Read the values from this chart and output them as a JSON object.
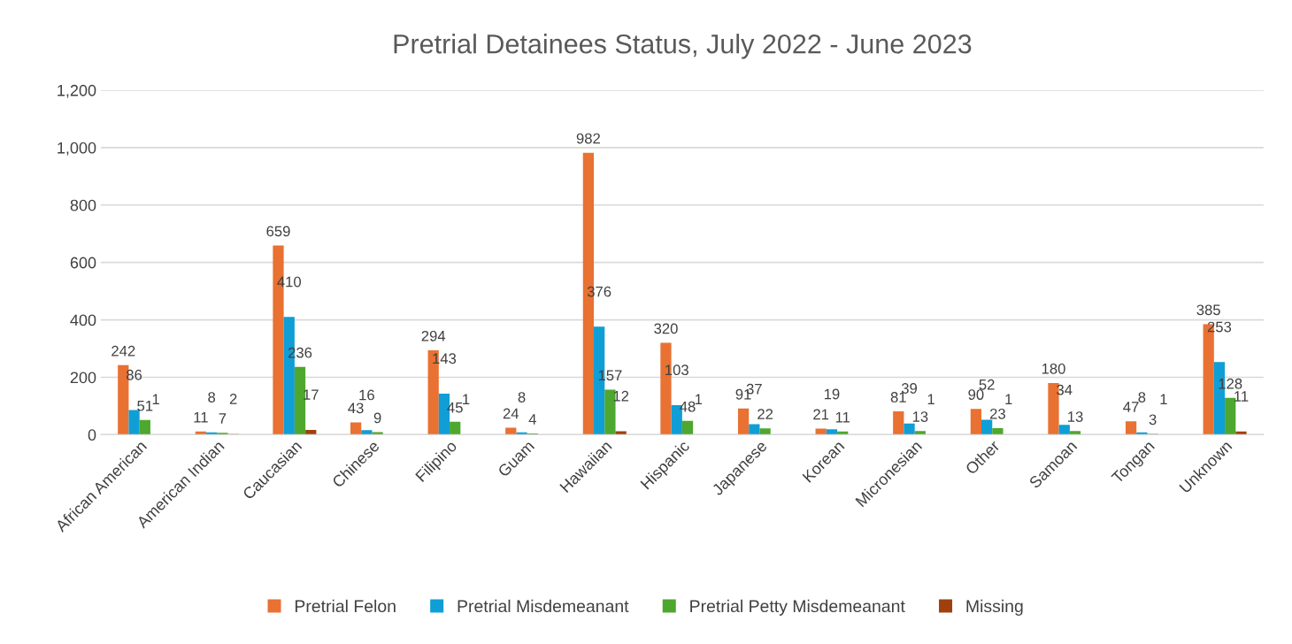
{
  "chart_data": {
    "type": "bar",
    "title": "Pretrial Detainees Status, July 2022 - June 2023",
    "categories": [
      "African American",
      "American Indian",
      "Caucasian",
      "Chinese",
      "Filipino",
      "Guam",
      "Hawaiian",
      "Hispanic",
      "Japanese",
      "Korean",
      "Micronesian",
      "Other",
      "Samoan",
      "Tongan",
      "Unknown"
    ],
    "series": [
      {
        "name": "Pretrial Felon",
        "color": "#e97132",
        "values": [
          242,
          11,
          659,
          43,
          294,
          24,
          982,
          320,
          91,
          21,
          81,
          90,
          180,
          47,
          385
        ]
      },
      {
        "name": "Pretrial Misdemeanant",
        "color": "#0f9ed5",
        "values": [
          86,
          8,
          410,
          16,
          143,
          8,
          376,
          103,
          37,
          19,
          39,
          52,
          34,
          8,
          253
        ]
      },
      {
        "name": "Pretrial Petty Misdemeanant",
        "color": "#4ea72e",
        "values": [
          51,
          7,
          236,
          9,
          45,
          4,
          157,
          48,
          22,
          11,
          13,
          23,
          13,
          3,
          128
        ]
      },
      {
        "name": "Missing",
        "color": "#a0410d",
        "values": [
          1,
          2,
          17,
          null,
          1,
          null,
          12,
          1,
          null,
          null,
          1,
          1,
          null,
          1,
          11
        ]
      }
    ],
    "ylim": [
      0,
      1200
    ],
    "yticks": [
      0,
      200,
      400,
      600,
      800,
      {
        "value": 1000,
        "label": "1,000"
      },
      {
        "value": 1200,
        "label": "1,200"
      }
    ],
    "grid": "y",
    "legend": "bottom",
    "data_labels": true
  }
}
